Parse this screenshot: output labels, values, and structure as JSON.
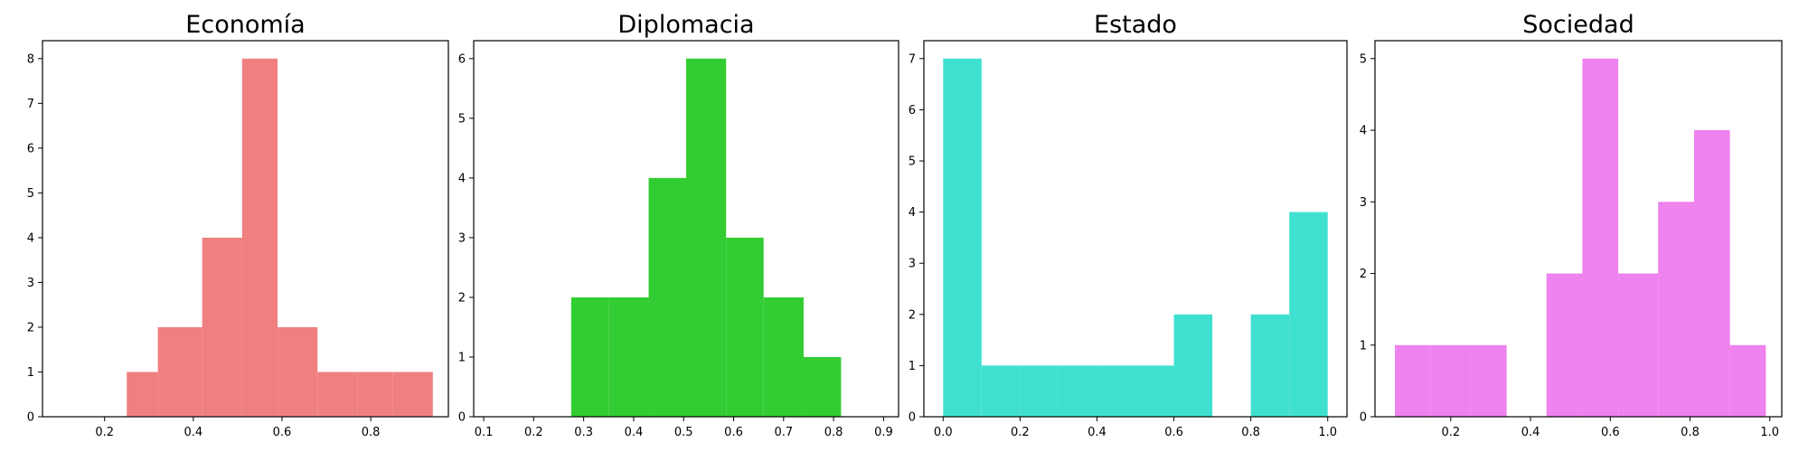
{
  "chart_data": [
    {
      "type": "bar",
      "title": "Economía",
      "color": "#f08080",
      "xlim": [
        0.06,
        0.975
      ],
      "ylim": [
        0,
        8.4
      ],
      "xticks": [
        {
          "value": 0.2,
          "label": "0.2"
        },
        {
          "value": 0.4,
          "label": "0.4"
        },
        {
          "value": 0.6,
          "label": "0.6"
        },
        {
          "value": 0.8,
          "label": "0.8"
        }
      ],
      "yticks": [
        {
          "value": 0,
          "label": "0"
        },
        {
          "value": 1,
          "label": "1"
        },
        {
          "value": 2,
          "label": "2"
        },
        {
          "value": 3,
          "label": "3"
        },
        {
          "value": 4,
          "label": "4"
        },
        {
          "value": 5,
          "label": "5"
        },
        {
          "value": 6,
          "label": "6"
        },
        {
          "value": 7,
          "label": "7"
        },
        {
          "value": 8,
          "label": "8"
        }
      ],
      "bins": [
        {
          "x0": 0.25,
          "x1": 0.32,
          "count": 1
        },
        {
          "x0": 0.32,
          "x1": 0.42,
          "count": 2
        },
        {
          "x0": 0.42,
          "x1": 0.51,
          "count": 4
        },
        {
          "x0": 0.51,
          "x1": 0.59,
          "count": 8
        },
        {
          "x0": 0.59,
          "x1": 0.68,
          "count": 2
        },
        {
          "x0": 0.68,
          "x1": 0.77,
          "count": 1
        },
        {
          "x0": 0.77,
          "x1": 0.85,
          "count": 1
        },
        {
          "x0": 0.85,
          "x1": 0.94,
          "count": 1
        }
      ]
    },
    {
      "type": "bar",
      "title": "Diplomacia",
      "color": "#32cd32",
      "xlim": [
        0.08,
        0.93
      ],
      "ylim": [
        0,
        6.3
      ],
      "xticks": [
        {
          "value": 0.1,
          "label": "0.1"
        },
        {
          "value": 0.2,
          "label": "0.2"
        },
        {
          "value": 0.3,
          "label": "0.3"
        },
        {
          "value": 0.4,
          "label": "0.4"
        },
        {
          "value": 0.5,
          "label": "0.5"
        },
        {
          "value": 0.6,
          "label": "0.6"
        },
        {
          "value": 0.7,
          "label": "0.7"
        },
        {
          "value": 0.8,
          "label": "0.8"
        },
        {
          "value": 0.9,
          "label": "0.9"
        }
      ],
      "yticks": [
        {
          "value": 0,
          "label": "0"
        },
        {
          "value": 1,
          "label": "1"
        },
        {
          "value": 2,
          "label": "2"
        },
        {
          "value": 3,
          "label": "3"
        },
        {
          "value": 4,
          "label": "4"
        },
        {
          "value": 5,
          "label": "5"
        },
        {
          "value": 6,
          "label": "6"
        }
      ],
      "bins": [
        {
          "x0": 0.275,
          "x1": 0.35,
          "count": 2
        },
        {
          "x0": 0.35,
          "x1": 0.43,
          "count": 2
        },
        {
          "x0": 0.43,
          "x1": 0.505,
          "count": 4
        },
        {
          "x0": 0.505,
          "x1": 0.585,
          "count": 6
        },
        {
          "x0": 0.585,
          "x1": 0.66,
          "count": 3
        },
        {
          "x0": 0.66,
          "x1": 0.74,
          "count": 2
        },
        {
          "x0": 0.74,
          "x1": 0.815,
          "count": 1
        }
      ]
    },
    {
      "type": "bar",
      "title": "Estado",
      "color": "#40e0d0",
      "xlim": [
        -0.05,
        1.05
      ],
      "ylim": [
        0,
        7.35
      ],
      "xticks": [
        {
          "value": 0.0,
          "label": "0.0"
        },
        {
          "value": 0.2,
          "label": "0.2"
        },
        {
          "value": 0.4,
          "label": "0.4"
        },
        {
          "value": 0.6,
          "label": "0.6"
        },
        {
          "value": 0.8,
          "label": "0.8"
        },
        {
          "value": 1.0,
          "label": "1.0"
        }
      ],
      "yticks": [
        {
          "value": 0,
          "label": "0"
        },
        {
          "value": 1,
          "label": "1"
        },
        {
          "value": 2,
          "label": "2"
        },
        {
          "value": 3,
          "label": "3"
        },
        {
          "value": 4,
          "label": "4"
        },
        {
          "value": 5,
          "label": "5"
        },
        {
          "value": 6,
          "label": "6"
        },
        {
          "value": 7,
          "label": "7"
        }
      ],
      "bins": [
        {
          "x0": 0.0,
          "x1": 0.1,
          "count": 7
        },
        {
          "x0": 0.1,
          "x1": 0.2,
          "count": 1
        },
        {
          "x0": 0.2,
          "x1": 0.3,
          "count": 1
        },
        {
          "x0": 0.3,
          "x1": 0.4,
          "count": 1
        },
        {
          "x0": 0.4,
          "x1": 0.5,
          "count": 1
        },
        {
          "x0": 0.5,
          "x1": 0.6,
          "count": 1
        },
        {
          "x0": 0.6,
          "x1": 0.7,
          "count": 2
        },
        {
          "x0": 0.7,
          "x1": 0.8,
          "count": 0
        },
        {
          "x0": 0.8,
          "x1": 0.9,
          "count": 2
        },
        {
          "x0": 0.9,
          "x1": 1.0,
          "count": 4
        }
      ]
    },
    {
      "type": "bar",
      "title": "Sociedad",
      "color": "#ee82ee",
      "xlim": [
        0.01,
        1.03
      ],
      "ylim": [
        0,
        5.25
      ],
      "xticks": [
        {
          "value": 0.2,
          "label": "0.2"
        },
        {
          "value": 0.4,
          "label": "0.4"
        },
        {
          "value": 0.6,
          "label": "0.6"
        },
        {
          "value": 0.8,
          "label": "0.8"
        },
        {
          "value": 1.0,
          "label": "1.0"
        }
      ],
      "yticks": [
        {
          "value": 0,
          "label": "0"
        },
        {
          "value": 1,
          "label": "1"
        },
        {
          "value": 2,
          "label": "2"
        },
        {
          "value": 3,
          "label": "3"
        },
        {
          "value": 4,
          "label": "4"
        },
        {
          "value": 5,
          "label": "5"
        }
      ],
      "bins": [
        {
          "x0": 0.06,
          "x1": 0.15,
          "count": 1
        },
        {
          "x0": 0.15,
          "x1": 0.25,
          "count": 1
        },
        {
          "x0": 0.25,
          "x1": 0.34,
          "count": 1
        },
        {
          "x0": 0.34,
          "x1": 0.44,
          "count": 0
        },
        {
          "x0": 0.44,
          "x1": 0.53,
          "count": 2
        },
        {
          "x0": 0.53,
          "x1": 0.62,
          "count": 5
        },
        {
          "x0": 0.62,
          "x1": 0.72,
          "count": 2
        },
        {
          "x0": 0.72,
          "x1": 0.81,
          "count": 3
        },
        {
          "x0": 0.81,
          "x1": 0.9,
          "count": 4
        },
        {
          "x0": 0.9,
          "x1": 0.99,
          "count": 1
        }
      ]
    }
  ]
}
